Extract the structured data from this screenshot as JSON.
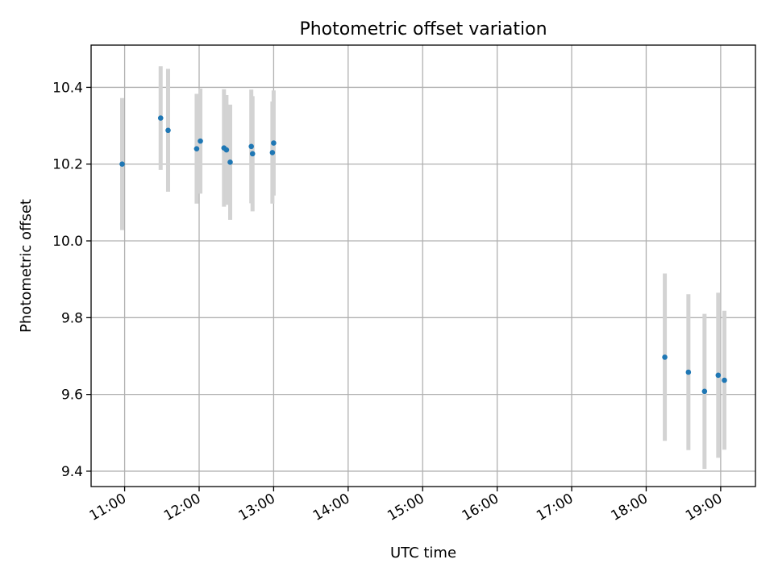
{
  "chart_data": {
    "type": "scatter",
    "title": "Photometric offset variation",
    "xlabel": "UTC time",
    "ylabel": "Photometric offset",
    "xlim": [
      "10:33",
      "19:28"
    ],
    "ylim": [
      9.36,
      10.51
    ],
    "x_ticks": [
      "11:00",
      "12:00",
      "13:00",
      "14:00",
      "15:00",
      "16:00",
      "17:00",
      "18:00",
      "19:00"
    ],
    "y_ticks": [
      9.4,
      9.6,
      9.8,
      10.0,
      10.2,
      10.4
    ],
    "grid": true,
    "point_color": "#1f77b4",
    "errorbar_color": "#d3d3d3",
    "points": [
      {
        "x": "10:58",
        "y": 10.2,
        "err": 0.172
      },
      {
        "x": "11:29",
        "y": 10.32,
        "err": 0.135
      },
      {
        "x": "11:35",
        "y": 10.288,
        "err": 0.16
      },
      {
        "x": "11:58",
        "y": 10.24,
        "err": 0.143
      },
      {
        "x": "12:01",
        "y": 10.26,
        "err": 0.137
      },
      {
        "x": "12:20",
        "y": 10.242,
        "err": 0.153
      },
      {
        "x": "12:22",
        "y": 10.237,
        "err": 0.143
      },
      {
        "x": "12:25",
        "y": 10.205,
        "err": 0.15
      },
      {
        "x": "12:42",
        "y": 10.246,
        "err": 0.148
      },
      {
        "x": "12:43",
        "y": 10.227,
        "err": 0.15
      },
      {
        "x": "12:59",
        "y": 10.23,
        "err": 0.133
      },
      {
        "x": "13:00",
        "y": 10.255,
        "err": 0.137
      },
      {
        "x": "18:15",
        "y": 9.697,
        "err": 0.218
      },
      {
        "x": "18:34",
        "y": 9.658,
        "err": 0.203
      },
      {
        "x": "18:47",
        "y": 9.608,
        "err": 0.202
      },
      {
        "x": "18:58",
        "y": 9.65,
        "err": 0.215
      },
      {
        "x": "19:03",
        "y": 9.637,
        "err": 0.181
      }
    ]
  }
}
